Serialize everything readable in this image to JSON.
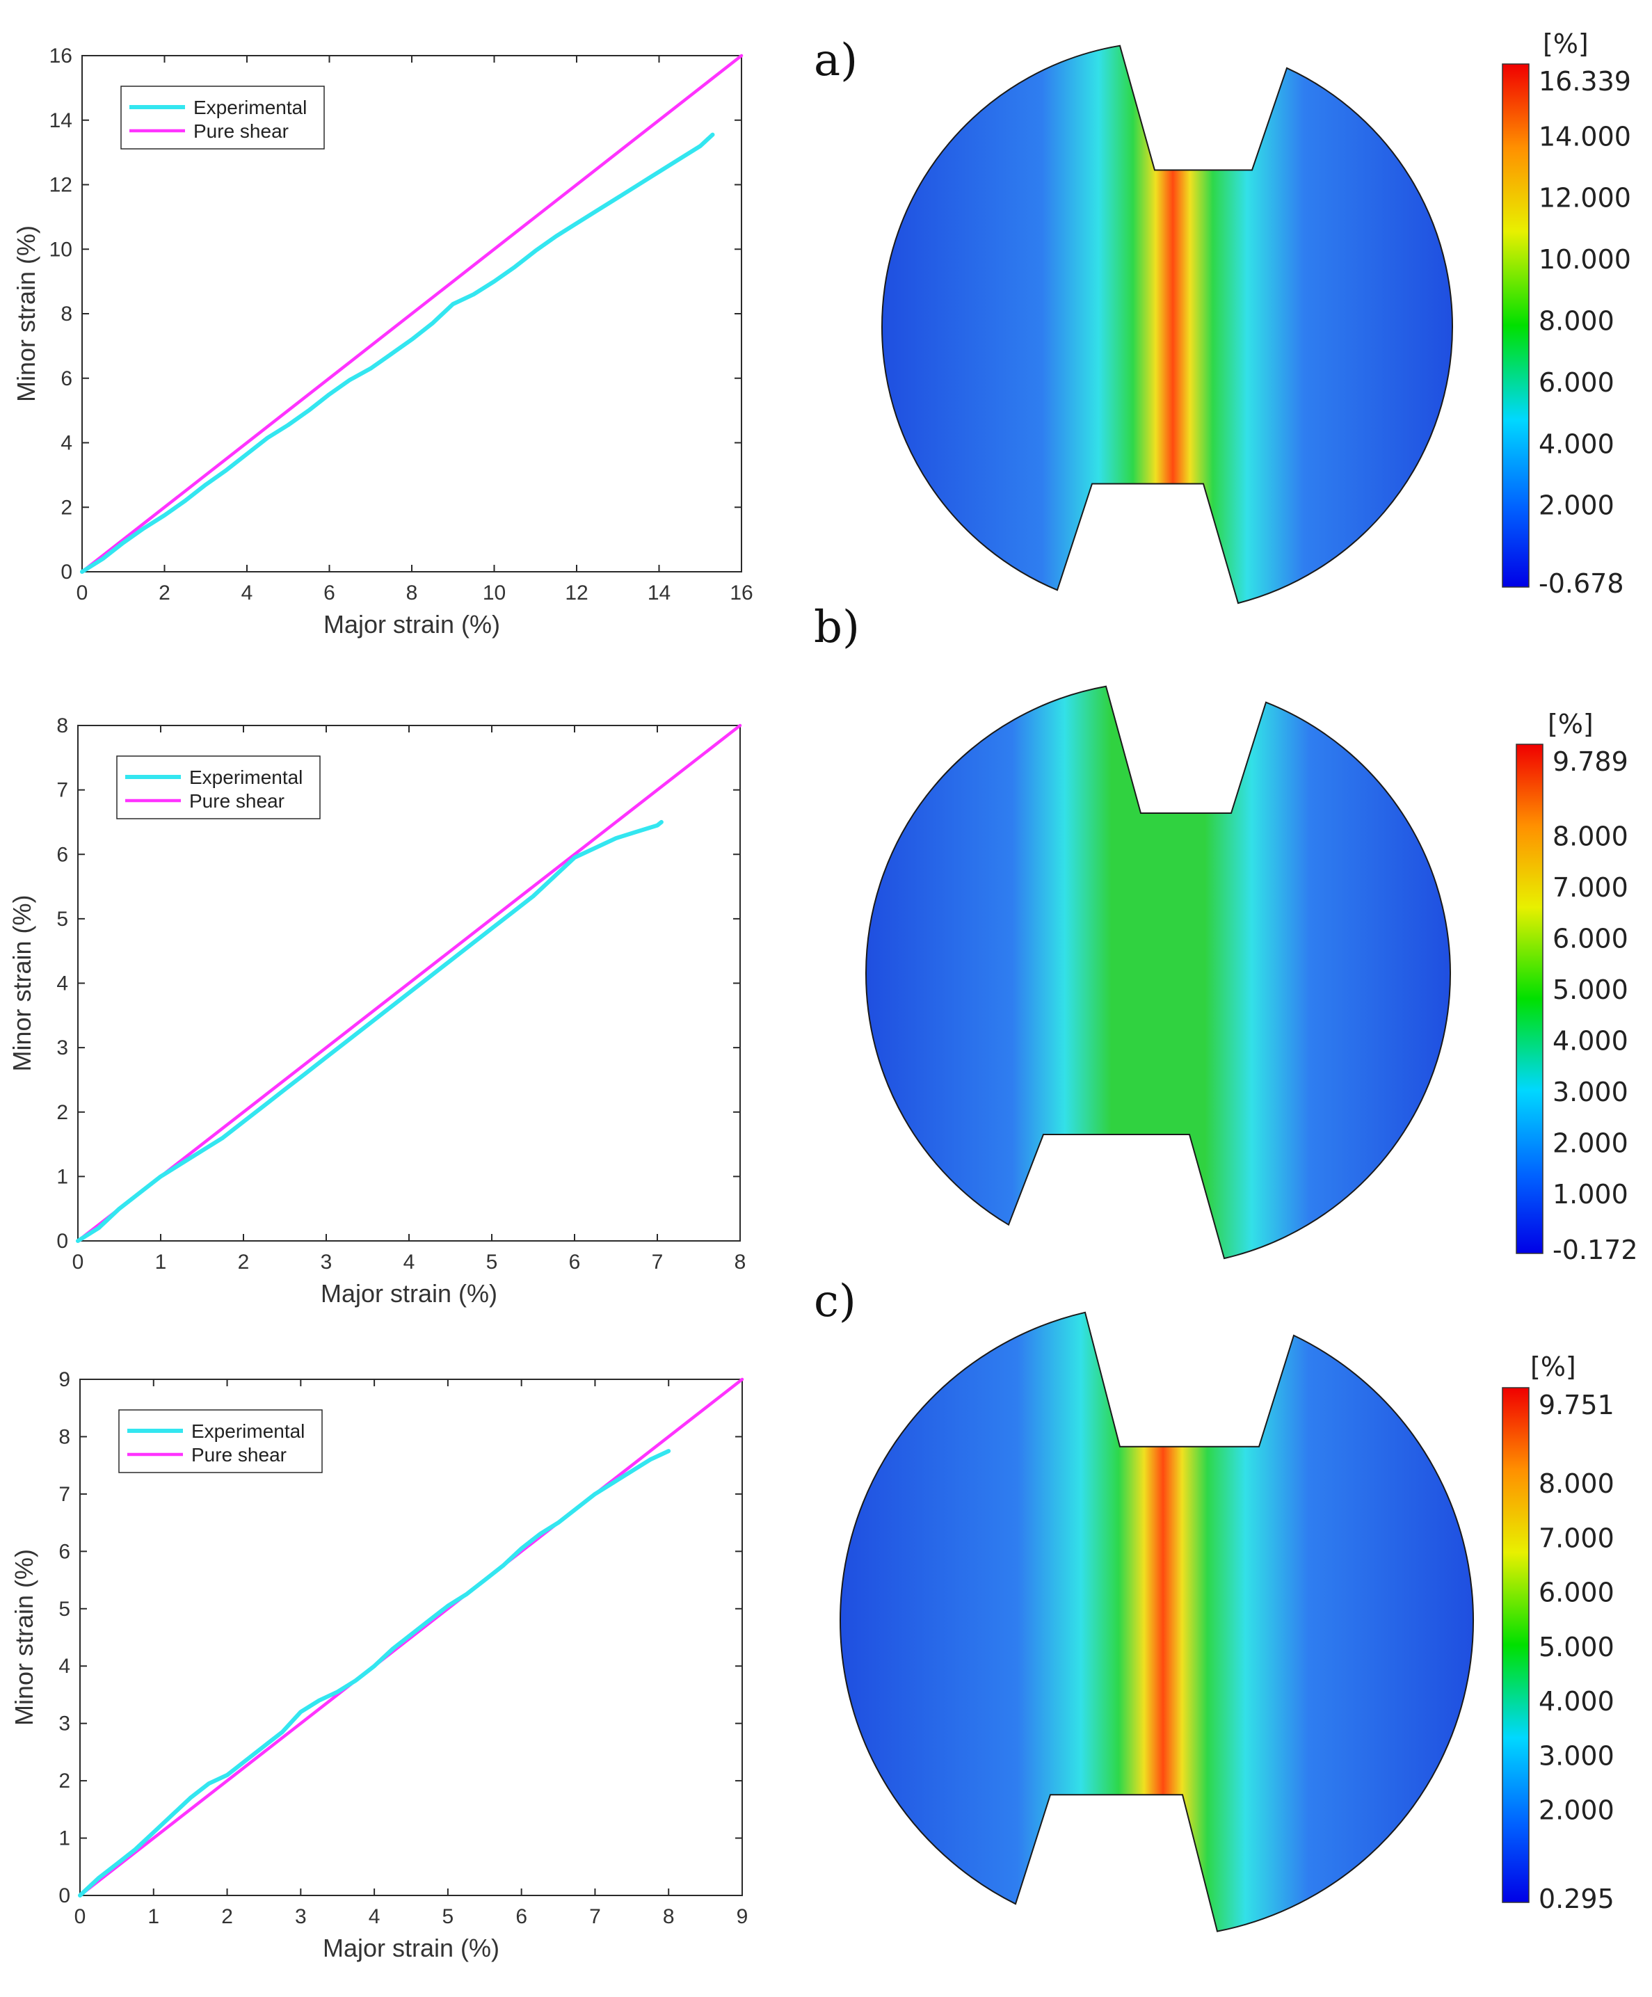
{
  "panel_labels": [
    "a)",
    "b)",
    "c)"
  ],
  "chart_data": [
    {
      "type": "line",
      "title": "",
      "xlabel": "Major strain (%)",
      "ylabel": "Minor strain (%)",
      "xlim": [
        0,
        16
      ],
      "ylim": [
        0,
        16
      ],
      "xticks": [
        0,
        2,
        4,
        6,
        8,
        10,
        12,
        14,
        16
      ],
      "yticks": [
        0,
        2,
        4,
        6,
        8,
        10,
        12,
        14,
        16
      ],
      "legend": "top-left",
      "grid": false,
      "series": [
        {
          "name": "Experimental",
          "color": "#33e6f0",
          "x": [
            0,
            0.5,
            1,
            1.5,
            2,
            2.5,
            3,
            3.5,
            4,
            4.5,
            5,
            5.5,
            6,
            6.5,
            7,
            7.5,
            8,
            8.5,
            9,
            9.5,
            10,
            10.5,
            11,
            11.5,
            12,
            12.5,
            13,
            13.5,
            14,
            14.5,
            15,
            15.3
          ],
          "y": [
            0,
            0.4,
            0.9,
            1.35,
            1.75,
            2.2,
            2.7,
            3.15,
            3.65,
            4.15,
            4.55,
            5.0,
            5.5,
            5.95,
            6.3,
            6.75,
            7.2,
            7.7,
            8.3,
            8.6,
            9.0,
            9.45,
            9.95,
            10.4,
            10.8,
            11.2,
            11.6,
            12.0,
            12.4,
            12.8,
            13.2,
            13.55
          ]
        },
        {
          "name": "Pure shear",
          "color": "#ff33ff",
          "x": [
            0,
            16
          ],
          "y": [
            0,
            16
          ]
        }
      ]
    },
    {
      "type": "line",
      "title": "",
      "xlabel": "Major strain (%)",
      "ylabel": "Minor strain (%)",
      "xlim": [
        0,
        8
      ],
      "ylim": [
        0,
        8
      ],
      "xticks": [
        0,
        1,
        2,
        3,
        4,
        5,
        6,
        7,
        8
      ],
      "yticks": [
        0,
        1,
        2,
        3,
        4,
        5,
        6,
        7,
        8
      ],
      "legend": "top-left",
      "grid": false,
      "series": [
        {
          "name": "Experimental",
          "color": "#33e6f0",
          "x": [
            0,
            0.25,
            0.5,
            0.75,
            1,
            1.25,
            1.5,
            1.75,
            2,
            2.25,
            2.5,
            2.75,
            3,
            3.25,
            3.5,
            3.75,
            4,
            4.25,
            4.5,
            4.75,
            5,
            5.25,
            5.5,
            5.75,
            6,
            6.25,
            6.5,
            6.75,
            7,
            7.05
          ],
          "y": [
            0,
            0.2,
            0.5,
            0.75,
            1.0,
            1.2,
            1.4,
            1.6,
            1.85,
            2.1,
            2.35,
            2.6,
            2.85,
            3.1,
            3.35,
            3.6,
            3.85,
            4.1,
            4.35,
            4.6,
            4.85,
            5.1,
            5.35,
            5.65,
            5.95,
            6.1,
            6.25,
            6.35,
            6.45,
            6.5
          ]
        },
        {
          "name": "Pure shear",
          "color": "#ff33ff",
          "x": [
            0,
            8
          ],
          "y": [
            0,
            8
          ]
        }
      ]
    },
    {
      "type": "line",
      "title": "",
      "xlabel": "Major strain (%)",
      "ylabel": "Minor strain (%)",
      "xlim": [
        0,
        9
      ],
      "ylim": [
        0,
        9
      ],
      "xticks": [
        0,
        1,
        2,
        3,
        4,
        5,
        6,
        7,
        8,
        9
      ],
      "yticks": [
        0,
        1,
        2,
        3,
        4,
        5,
        6,
        7,
        8,
        9
      ],
      "legend": "top-left",
      "grid": false,
      "series": [
        {
          "name": "Experimental",
          "color": "#33e6f0",
          "x": [
            0,
            0.25,
            0.5,
            0.75,
            1,
            1.25,
            1.5,
            1.75,
            2,
            2.25,
            2.5,
            2.75,
            3,
            3.25,
            3.5,
            3.75,
            4,
            4.25,
            4.5,
            4.75,
            5,
            5.25,
            5.5,
            5.75,
            6,
            6.25,
            6.5,
            6.75,
            7,
            7.25,
            7.5,
            7.75,
            8
          ],
          "y": [
            0,
            0.3,
            0.55,
            0.8,
            1.1,
            1.4,
            1.7,
            1.95,
            2.1,
            2.35,
            2.6,
            2.85,
            3.2,
            3.4,
            3.55,
            3.75,
            4.0,
            4.3,
            4.55,
            4.8,
            5.05,
            5.25,
            5.5,
            5.75,
            6.05,
            6.3,
            6.5,
            6.75,
            7.0,
            7.2,
            7.4,
            7.6,
            7.75
          ]
        },
        {
          "name": "Pure shear",
          "color": "#ff33ff",
          "x": [
            0,
            9
          ],
          "y": [
            0,
            9
          ]
        }
      ]
    }
  ],
  "contour_maps": [
    {
      "unit": "[%]",
      "colorbar_labels": [
        "16.339",
        "14.000",
        "12.000",
        "10.000",
        "8.000",
        "6.000",
        "4.000",
        "2.000",
        "-0.678"
      ],
      "colorbar_values": [
        16.339,
        14,
        12,
        10,
        8,
        6,
        4,
        2,
        -0.678
      ]
    },
    {
      "unit": "[%]",
      "colorbar_labels": [
        "9.789",
        "8.000",
        "7.000",
        "6.000",
        "5.000",
        "4.000",
        "3.000",
        "2.000",
        "1.000",
        "-0.172"
      ],
      "colorbar_values": [
        9.789,
        8,
        7,
        6,
        5,
        4,
        3,
        2,
        1,
        -0.172
      ]
    },
    {
      "unit": "[%]",
      "colorbar_labels": [
        "9.751",
        "8.000",
        "7.000",
        "6.000",
        "5.000",
        "4.000",
        "3.000",
        "2.000",
        "0.295"
      ],
      "colorbar_values": [
        9.751,
        8,
        7,
        6,
        5,
        4,
        3,
        2,
        0.295
      ]
    }
  ]
}
